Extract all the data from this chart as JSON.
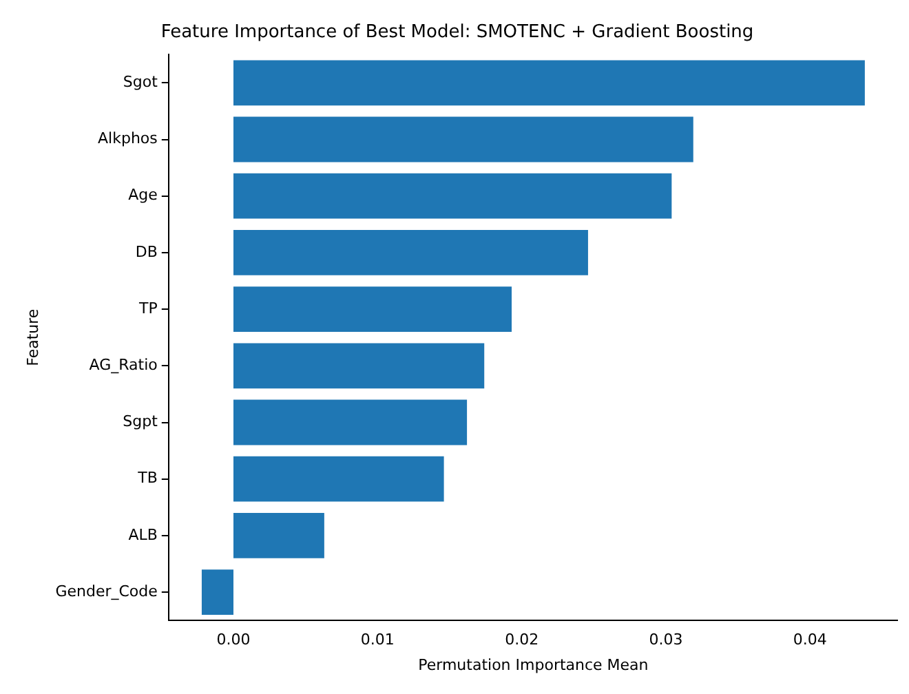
{
  "chart_data": {
    "type": "bar",
    "orientation": "horizontal",
    "title": "Feature Importance of Best Model: SMOTENC + Gradient Boosting",
    "xlabel": "Permutation Importance Mean",
    "ylabel": "Feature",
    "categories": [
      "Sgot",
      "Alkphos",
      "Age",
      "DB",
      "TP",
      "AG_Ratio",
      "Sgpt",
      "TB",
      "ALB",
      "Gender_Code"
    ],
    "values": [
      0.0438,
      0.0319,
      0.0304,
      0.0246,
      0.0193,
      0.0174,
      0.0162,
      0.0146,
      0.0063,
      -0.0022
    ],
    "color": "#1f77b4",
    "xlim": [
      -0.0045,
      0.0461
    ],
    "xticks": [
      {
        "value": 0,
        "label": "0.00"
      },
      {
        "value": 0.01,
        "label": "0.01"
      },
      {
        "value": 0.02,
        "label": "0.02"
      },
      {
        "value": 0.03,
        "label": "0.03"
      },
      {
        "value": 0.04,
        "label": "0.04"
      }
    ],
    "grid": false,
    "legend": false
  }
}
